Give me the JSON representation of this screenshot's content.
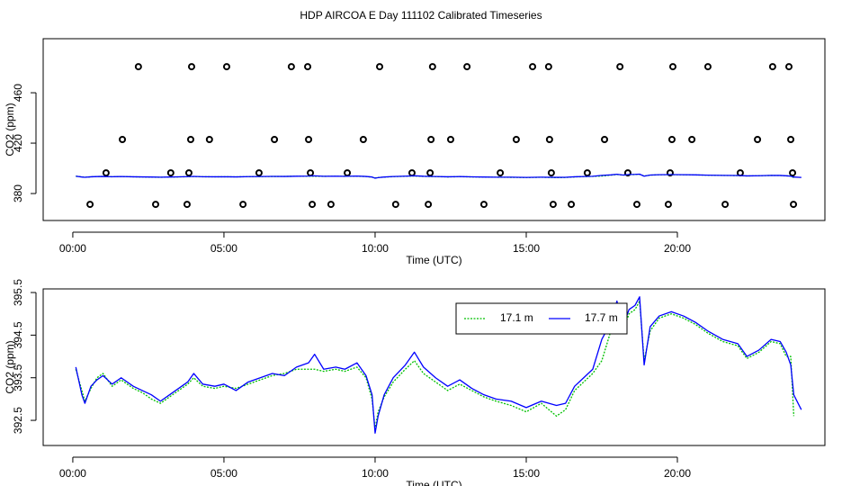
{
  "chart_data": [
    {
      "type": "combo",
      "title": "HDP AIRCOA E  Day 111102  Calibrated Timeseries",
      "x_label": "Time (UTC)",
      "y_label": "CO2 (ppm)",
      "xlim": [
        -0.98,
        24.88
      ],
      "ylim": [
        358.6,
        502.9
      ],
      "xticks": [
        {
          "value": 0,
          "label": "00:00"
        },
        {
          "value": 5,
          "label": "05:00"
        },
        {
          "value": 10,
          "label": "10:00"
        },
        {
          "value": 15,
          "label": "15:00"
        },
        {
          "value": 20,
          "label": "20:00"
        }
      ],
      "yticks": [
        380,
        420,
        460
      ],
      "x": [
        0.1,
        0.3,
        0.4,
        0.6,
        0.8,
        1.0,
        1.3,
        1.6,
        2.0,
        2.3,
        2.6,
        2.9,
        3.2,
        3.5,
        3.8,
        4.0,
        4.3,
        4.7,
        5.0,
        5.4,
        5.8,
        6.2,
        6.6,
        7.0,
        7.4,
        7.8,
        8.0,
        8.3,
        8.7,
        9.0,
        9.4,
        9.7,
        9.9,
        10.0,
        10.1,
        10.3,
        10.6,
        11.0,
        11.3,
        11.6,
        12.0,
        12.4,
        12.8,
        13.2,
        13.6,
        14.0,
        14.5,
        15.0,
        15.5,
        16.0,
        16.3,
        16.6,
        16.9,
        17.2,
        17.5,
        17.8,
        18.0,
        18.2,
        18.4,
        18.6,
        18.75,
        18.9,
        19.1,
        19.4,
        19.8,
        20.2,
        20.6,
        21.0,
        21.5,
        22.0,
        22.3,
        22.7,
        23.1,
        23.4,
        23.6,
        23.75,
        23.85,
        24.1
      ],
      "series": [
        {
          "type": "scatter",
          "color": "#000000",
          "x": [
            2.17,
            3.93,
            5.09,
            7.23,
            7.77,
            10.15,
            11.9,
            13.04,
            15.21,
            15.74,
            18.1,
            19.85,
            21.01,
            23.15,
            23.69,
            1.64,
            3.9,
            4.52,
            6.67,
            7.8,
            9.61,
            11.85,
            12.5,
            14.67,
            15.77,
            17.59,
            19.82,
            20.48,
            22.65,
            23.75,
            1.1,
            3.24,
            3.84,
            6.16,
            7.86,
            9.08,
            11.22,
            11.82,
            14.14,
            15.83,
            17.02,
            18.36,
            19.76,
            22.08,
            23.81,
            0.57,
            2.74,
            3.78,
            5.63,
            7.92,
            8.54,
            10.68,
            11.76,
            13.6,
            15.89,
            16.49,
            18.66,
            19.7,
            21.58,
            23.84
          ],
          "values": [
            480.7,
            480.7,
            480.7,
            480.7,
            480.7,
            480.7,
            480.7,
            480.7,
            480.7,
            480.7,
            480.7,
            480.7,
            480.7,
            480.7,
            480.7,
            422.9,
            422.9,
            422.9,
            422.9,
            422.9,
            422.9,
            422.9,
            422.9,
            422.9,
            422.9,
            422.9,
            422.9,
            422.9,
            422.9,
            422.9,
            396.4,
            396.4,
            396.4,
            396.4,
            396.4,
            396.4,
            396.4,
            396.4,
            396.4,
            396.4,
            396.4,
            396.4,
            396.4,
            396.4,
            396.4,
            371.4,
            371.4,
            371.4,
            371.4,
            371.4,
            371.4,
            371.4,
            371.4,
            371.4,
            371.4,
            371.4,
            371.4,
            371.4,
            371.4,
            371.4
          ]
        },
        {
          "type": "line",
          "color": "#00c000",
          "dash": "dotted",
          "values": [
            393.7,
            393.2,
            392.95,
            393.25,
            393.5,
            393.6,
            393.3,
            393.45,
            393.25,
            393.15,
            393.0,
            392.9,
            393.05,
            393.2,
            393.35,
            393.5,
            393.3,
            393.25,
            393.3,
            393.25,
            393.35,
            393.45,
            393.55,
            393.6,
            393.7,
            393.7,
            393.7,
            393.65,
            393.7,
            393.65,
            393.75,
            393.5,
            393.0,
            392.3,
            392.7,
            393.05,
            393.4,
            393.7,
            393.9,
            393.6,
            393.4,
            393.2,
            393.35,
            393.2,
            393.05,
            392.95,
            392.85,
            392.7,
            392.9,
            392.6,
            392.75,
            393.2,
            393.4,
            393.6,
            393.9,
            394.6,
            395.1,
            394.6,
            395.0,
            395.1,
            395.3,
            393.9,
            394.6,
            394.9,
            395.0,
            394.9,
            394.75,
            394.55,
            394.35,
            394.25,
            393.95,
            394.1,
            394.35,
            394.3,
            394.0,
            394.0,
            392.6,
            null
          ]
        },
        {
          "type": "line",
          "color": "#0000ff",
          "values": [
            393.75,
            393.1,
            392.9,
            393.3,
            393.45,
            393.55,
            393.35,
            393.5,
            393.3,
            393.2,
            393.1,
            392.95,
            393.1,
            393.25,
            393.4,
            393.6,
            393.35,
            393.3,
            393.35,
            393.2,
            393.4,
            393.5,
            393.6,
            393.55,
            393.75,
            393.85,
            394.05,
            393.7,
            393.75,
            393.7,
            393.85,
            393.55,
            393.1,
            392.2,
            392.6,
            393.1,
            393.5,
            393.8,
            394.1,
            393.75,
            393.5,
            393.3,
            393.45,
            393.25,
            393.1,
            393.0,
            392.95,
            392.8,
            392.95,
            392.85,
            392.9,
            393.3,
            393.5,
            393.7,
            394.4,
            394.8,
            395.3,
            394.7,
            395.1,
            395.2,
            395.4,
            393.8,
            394.7,
            394.95,
            395.05,
            394.95,
            394.8,
            394.6,
            394.4,
            394.3,
            394.0,
            394.15,
            394.4,
            394.35,
            394.1,
            393.8,
            393.1,
            392.75
          ]
        }
      ]
    },
    {
      "type": "line",
      "x_label": "Time (UTC)",
      "y_label": "CO2 (ppm)",
      "legend": "top-right",
      "xlim": [
        -0.98,
        24.88
      ],
      "ylim": [
        391.91,
        395.585
      ],
      "xticks": [
        {
          "value": 0,
          "label": "00:00"
        },
        {
          "value": 5,
          "label": "05:00"
        },
        {
          "value": 10,
          "label": "10:00"
        },
        {
          "value": 15,
          "label": "15:00"
        },
        {
          "value": 20,
          "label": "20:00"
        }
      ],
      "yticks": [
        392.5,
        393.5,
        394.5,
        395.5
      ],
      "x": [
        0.1,
        0.3,
        0.4,
        0.6,
        0.8,
        1.0,
        1.3,
        1.6,
        2.0,
        2.3,
        2.6,
        2.9,
        3.2,
        3.5,
        3.8,
        4.0,
        4.3,
        4.7,
        5.0,
        5.4,
        5.8,
        6.2,
        6.6,
        7.0,
        7.4,
        7.8,
        8.0,
        8.3,
        8.7,
        9.0,
        9.4,
        9.7,
        9.9,
        10.0,
        10.1,
        10.3,
        10.6,
        11.0,
        11.3,
        11.6,
        12.0,
        12.4,
        12.8,
        13.2,
        13.6,
        14.0,
        14.5,
        15.0,
        15.5,
        16.0,
        16.3,
        16.6,
        16.9,
        17.2,
        17.5,
        17.8,
        18.0,
        18.2,
        18.4,
        18.6,
        18.75,
        18.9,
        19.1,
        19.4,
        19.8,
        20.2,
        20.6,
        21.0,
        21.5,
        22.0,
        22.3,
        22.7,
        23.1,
        23.4,
        23.6,
        23.75,
        23.85,
        24.1
      ],
      "series": [
        {
          "name": "17.1 m",
          "type": "line",
          "color": "#00c000",
          "dash": "dotted",
          "values": [
            393.7,
            393.2,
            392.95,
            393.25,
            393.5,
            393.6,
            393.3,
            393.45,
            393.25,
            393.15,
            393.0,
            392.9,
            393.05,
            393.2,
            393.35,
            393.5,
            393.3,
            393.25,
            393.3,
            393.25,
            393.35,
            393.45,
            393.55,
            393.6,
            393.7,
            393.7,
            393.7,
            393.65,
            393.7,
            393.65,
            393.75,
            393.5,
            393.0,
            392.3,
            392.7,
            393.05,
            393.4,
            393.7,
            393.9,
            393.6,
            393.4,
            393.2,
            393.35,
            393.2,
            393.05,
            392.95,
            392.85,
            392.7,
            392.9,
            392.6,
            392.75,
            393.2,
            393.4,
            393.6,
            393.9,
            394.6,
            395.1,
            394.6,
            395.0,
            395.1,
            395.3,
            393.9,
            394.6,
            394.9,
            395.0,
            394.9,
            394.75,
            394.55,
            394.35,
            394.25,
            393.95,
            394.1,
            394.35,
            394.3,
            394.0,
            394.0,
            392.6,
            null
          ]
        },
        {
          "name": "17.7 m",
          "type": "line",
          "color": "#0000ff",
          "values": [
            393.75,
            393.1,
            392.9,
            393.3,
            393.45,
            393.55,
            393.35,
            393.5,
            393.3,
            393.2,
            393.1,
            392.95,
            393.1,
            393.25,
            393.4,
            393.6,
            393.35,
            393.3,
            393.35,
            393.2,
            393.4,
            393.5,
            393.6,
            393.55,
            393.75,
            393.85,
            394.05,
            393.7,
            393.75,
            393.7,
            393.85,
            393.55,
            393.1,
            392.2,
            392.6,
            393.1,
            393.5,
            393.8,
            394.1,
            393.75,
            393.5,
            393.3,
            393.45,
            393.25,
            393.1,
            393.0,
            392.95,
            392.8,
            392.95,
            392.85,
            392.9,
            393.3,
            393.5,
            393.7,
            394.4,
            394.8,
            395.3,
            394.7,
            395.1,
            395.2,
            395.4,
            393.8,
            394.7,
            394.95,
            395.05,
            394.95,
            394.8,
            394.6,
            394.4,
            394.3,
            394.0,
            394.15,
            394.4,
            394.35,
            394.1,
            393.8,
            393.1,
            392.75
          ]
        }
      ]
    }
  ]
}
